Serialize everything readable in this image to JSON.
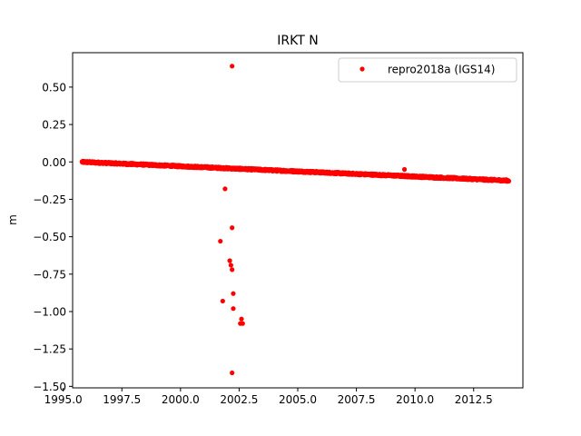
{
  "chart_data": {
    "type": "scatter",
    "title": "IRKT N",
    "xlabel": "",
    "ylabel": "m",
    "xlim": [
      1995.4,
      2014.6
    ],
    "ylim": [
      -1.51,
      0.73
    ],
    "xticks": [
      1995.0,
      1997.5,
      2000.0,
      2002.5,
      2005.0,
      2007.5,
      2010.0,
      2012.5
    ],
    "xtick_labels": [
      "1995.0",
      "1997.5",
      "2000.0",
      "2002.5",
      "2005.0",
      "2007.5",
      "2010.0",
      "2012.5"
    ],
    "yticks": [
      0.5,
      0.25,
      0.0,
      -0.25,
      -0.5,
      -0.75,
      -1.0,
      -1.25,
      -1.5
    ],
    "ytick_labels": [
      "0.50",
      "0.25",
      "0.00",
      "−0.25",
      "−0.50",
      "−0.75",
      "−1.00",
      "−1.25",
      "−1.50"
    ],
    "grid": false,
    "legend_position": "top-right",
    "series": [
      {
        "name": "repro2018a (IGS14)",
        "color": "#ff0000",
        "marker": "dot",
        "trend": {
          "x_start": 1995.8,
          "x_end": 2014.0,
          "y_start": 0.0,
          "y_end": -0.125,
          "noise": 0.006,
          "approx_points": 6600
        },
        "outliers": [
          [
            2002.2,
            0.64
          ],
          [
            2001.9,
            -0.18
          ],
          [
            2002.2,
            -0.44
          ],
          [
            2001.7,
            -0.53
          ],
          [
            2002.1,
            -0.66
          ],
          [
            2002.15,
            -0.69
          ],
          [
            2002.2,
            -0.72
          ],
          [
            2001.8,
            -0.93
          ],
          [
            2002.25,
            -0.88
          ],
          [
            2002.25,
            -0.98
          ],
          [
            2002.6,
            -1.05
          ],
          [
            2002.55,
            -1.08
          ],
          [
            2002.65,
            -1.08
          ],
          [
            2002.2,
            -1.41
          ],
          [
            2009.55,
            -0.05
          ]
        ]
      }
    ]
  }
}
